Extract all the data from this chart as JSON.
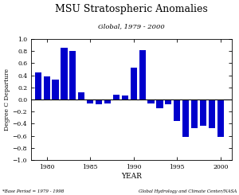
{
  "title": "MSU Stratospheric Anomalies",
  "subtitle": "Global, 1979 - 2000",
  "xlabel": "YEAR",
  "ylabel": "Degree C Departure",
  "footnote_left": "*Base Period = 1979 - 1998",
  "footnote_right": "Global Hydrology and Climate Center/NASA",
  "years": [
    1979,
    1980,
    1981,
    1982,
    1983,
    1984,
    1985,
    1986,
    1987,
    1988,
    1989,
    1990,
    1991,
    1992,
    1993,
    1994,
    1995,
    1996,
    1997,
    1998,
    1999,
    2000
  ],
  "values": [
    0.45,
    0.38,
    0.33,
    0.85,
    0.8,
    0.12,
    -0.07,
    -0.08,
    -0.07,
    0.08,
    0.07,
    0.53,
    0.81,
    -0.06,
    -0.15,
    -0.08,
    -0.35,
    -0.62,
    -0.48,
    -0.43,
    -0.47,
    -0.62
  ],
  "bar_color": "#0000CC",
  "zero_line_color": "#000000",
  "background_color": "#ffffff",
  "ylim": [
    -1.0,
    1.0
  ],
  "xlim": [
    1978.2,
    2001.3
  ],
  "yticks": [
    -1.0,
    -0.8,
    -0.6,
    -0.4,
    -0.2,
    0.0,
    0.2,
    0.4,
    0.6,
    0.8,
    1.0
  ],
  "xticks": [
    1980,
    1985,
    1990,
    1995,
    2000
  ],
  "title_fontsize": 9,
  "subtitle_fontsize": 6,
  "ylabel_fontsize": 5.5,
  "xlabel_fontsize": 6.5,
  "tick_fontsize": 5.5,
  "footnote_fontsize": 4.0
}
